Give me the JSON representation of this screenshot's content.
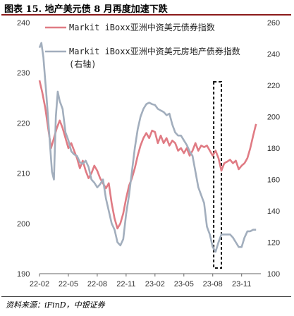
{
  "title": "图表 15. 地产美元债 8 月再度加速下跌",
  "source": "资料来源：iFinD，中银证券",
  "chart_data": {
    "type": "line",
    "x_ticks": [
      "22-02",
      "22-05",
      "22-08",
      "22-11",
      "23-02",
      "23-05",
      "23-08",
      "23-11"
    ],
    "left_axis": {
      "ylim": [
        190,
        240
      ],
      "ticks": [
        190,
        200,
        210,
        220,
        230,
        240
      ]
    },
    "right_axis": {
      "ylim": [
        100,
        260
      ],
      "ticks": [
        100,
        120,
        140,
        160,
        180,
        200,
        220,
        240,
        260
      ]
    },
    "x_range": [
      0,
      23
    ],
    "highlight_box": {
      "x_start": 18.1,
      "x_end": 18.9,
      "label": ""
    },
    "legend_position": "top-right",
    "series": [
      {
        "name": "Markit iBoxx亚洲中资美元债券指数",
        "axis": "left",
        "color": "#e07b84",
        "x": [
          0,
          0.3,
          0.6,
          0.9,
          1.2,
          1.5,
          1.8,
          2.1,
          2.4,
          2.7,
          3.0,
          3.3,
          3.6,
          3.9,
          4.2,
          4.5,
          4.8,
          5.1,
          5.4,
          5.7,
          6.0,
          6.3,
          6.6,
          6.9,
          7.2,
          7.5,
          7.8,
          8.1,
          8.4,
          8.7,
          9.0,
          9.3,
          9.6,
          9.9,
          10.2,
          10.5,
          10.8,
          11.1,
          11.4,
          11.7,
          12.0,
          12.3,
          12.6,
          12.9,
          13.2,
          13.5,
          13.8,
          14.1,
          14.4,
          14.7,
          15.0,
          15.3,
          15.6,
          15.9,
          16.2,
          16.5,
          16.8,
          17.1,
          17.4,
          17.7,
          18.0,
          18.3,
          18.6,
          18.9,
          19.2,
          19.5,
          19.8,
          20.1,
          20.4,
          20.7,
          21.0,
          21.3,
          21.6,
          21.9,
          22.2,
          22.5
        ],
        "values": [
          228.5,
          226,
          223,
          219,
          215,
          217,
          219,
          220.5,
          219,
          217,
          215,
          216,
          214.5,
          213,
          211,
          212.5,
          210.5,
          209,
          210,
          211.5,
          210.5,
          209,
          208,
          207,
          208,
          204,
          201,
          199,
          200,
          202,
          205,
          207.5,
          209,
          211,
          213.5,
          215.5,
          217,
          218,
          217,
          218.5,
          218.2,
          216,
          217.5,
          216,
          217,
          215.5,
          216.5,
          216,
          214.5,
          215,
          214,
          215,
          213.5,
          214.5,
          216,
          214.5,
          215.5,
          215.2,
          215.5,
          214.5,
          213.5,
          214.5,
          213,
          210.5,
          212,
          212.3,
          212.7,
          212,
          212.5,
          210.8,
          211.5,
          212,
          213,
          215,
          217.5,
          219.8
        ]
      },
      {
        "name": "Markit iBoxx亚洲中资美元房地产债券指数(右轴)",
        "axis": "right",
        "color": "#a2aebd",
        "x": [
          0,
          0.2,
          0.4,
          0.7,
          1.0,
          1.3,
          1.5,
          1.7,
          1.9,
          2.1,
          2.4,
          2.7,
          3.0,
          3.3,
          3.6,
          3.9,
          4.2,
          4.5,
          4.8,
          5.1,
          5.4,
          5.7,
          6.0,
          6.3,
          6.6,
          6.9,
          7.2,
          7.5,
          7.8,
          8.1,
          8.4,
          8.7,
          9.0,
          9.3,
          9.6,
          9.9,
          10.2,
          10.5,
          10.8,
          11.1,
          11.4,
          11.7,
          12.0,
          12.3,
          12.6,
          12.9,
          13.2,
          13.5,
          13.8,
          14.1,
          14.4,
          14.7,
          15.0,
          15.3,
          15.6,
          15.9,
          16.2,
          16.5,
          16.8,
          17.1,
          17.4,
          17.7,
          18.0,
          18.3,
          18.6,
          18.9,
          19.2,
          19.5,
          19.8,
          20.1,
          20.4,
          20.7,
          21.0,
          21.3,
          21.6,
          21.9,
          22.2,
          22.5
        ],
        "values": [
          244,
          247,
          238,
          215,
          190,
          165,
          160,
          200,
          216,
          210,
          205,
          190,
          185,
          178,
          176,
          175,
          171,
          170,
          172,
          168,
          160,
          158,
          155,
          157,
          160,
          148,
          140,
          132,
          128,
          120,
          118,
          122,
          138,
          150,
          165,
          180,
          192,
          200,
          205,
          208,
          209,
          208,
          207.5,
          205,
          204,
          203,
          201,
          202,
          195,
          190,
          188,
          188,
          185,
          182,
          178,
          175,
          165,
          155,
          150,
          145,
          130,
          125,
          117,
          114,
          120,
          125,
          125,
          125,
          125,
          123,
          120,
          117,
          117,
          123,
          127,
          127,
          128,
          128
        ]
      }
    ]
  }
}
